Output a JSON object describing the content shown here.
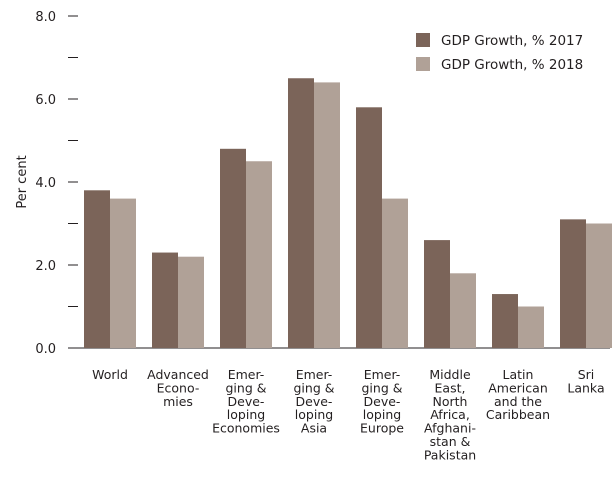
{
  "chart_data": {
    "type": "bar",
    "title": "",
    "xlabel": "",
    "ylabel": "Per cent",
    "ylim": [
      0,
      8
    ],
    "yticks": [
      {
        "value": 0,
        "label": "0.0"
      },
      {
        "value": 1,
        "label": ""
      },
      {
        "value": 2,
        "label": "2.0"
      },
      {
        "value": 3,
        "label": ""
      },
      {
        "value": 4,
        "label": "4.0"
      },
      {
        "value": 5,
        "label": ""
      },
      {
        "value": 6,
        "label": "6.0"
      },
      {
        "value": 7,
        "label": ""
      },
      {
        "value": 8,
        "label": "8.0"
      }
    ],
    "categories": [
      "World",
      "Advanced Economies",
      "Emerging & Developing Economies",
      "Emerging & Developing Asia",
      "Emerging & Developing Europe",
      "Middle East, North Africa, Afghanistan & Pakistan",
      "Latin American and the Caribbean",
      "Sri Lanka"
    ],
    "category_label_lines": [
      [
        "World"
      ],
      [
        "Advanced",
        "Econo-",
        "mies"
      ],
      [
        "Emer-",
        "ging &",
        "Deve-",
        "loping",
        "Economies"
      ],
      [
        "Emer-",
        "ging &",
        "Deve-",
        "loping",
        "Asia"
      ],
      [
        "Emer-",
        "ging &",
        "Deve-",
        "loping",
        "Europe"
      ],
      [
        "Middle",
        "East,",
        "North",
        "Africa,",
        "Afghani-",
        "stan &",
        "Pakistan"
      ],
      [
        "Latin",
        "American",
        "and the",
        "Caribbean"
      ],
      [
        "Sri",
        "Lanka"
      ]
    ],
    "series": [
      {
        "name": "GDP Growth, % 2017",
        "color": "#7b6459",
        "values": [
          3.8,
          2.3,
          4.8,
          6.5,
          5.8,
          2.6,
          1.3,
          3.1
        ]
      },
      {
        "name": "GDP Growth, % 2018",
        "color": "#b0a197",
        "values": [
          3.6,
          2.2,
          4.5,
          6.4,
          3.6,
          1.8,
          1.0,
          3.0
        ]
      }
    ],
    "legend_position": "top-right",
    "grid": false
  }
}
